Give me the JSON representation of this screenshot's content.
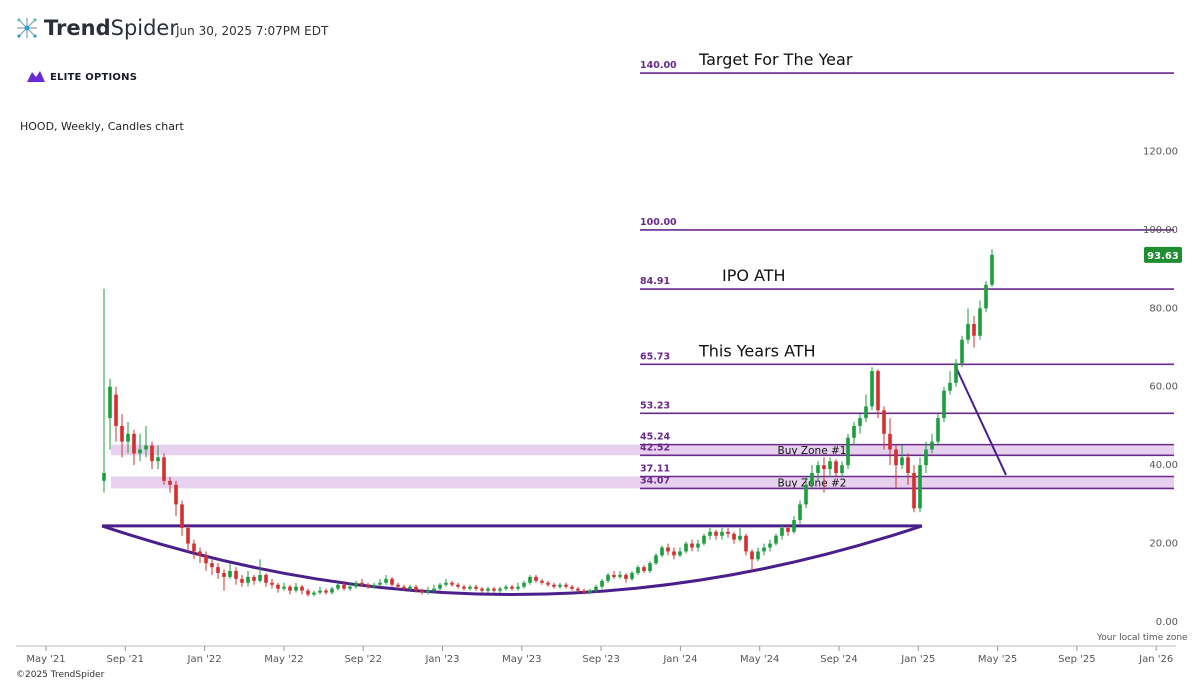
{
  "header": {
    "logo_light": "Trend",
    "logo_bold": "Spider",
    "timestamp": "Jun 30, 2025 7:07PM EDT",
    "brand": "ELITE OPTIONS",
    "chart_title": "HOOD, Weekly, Candles chart"
  },
  "footer": {
    "timezone": "Your local time zone",
    "copyright": "©2025 TrendSpider"
  },
  "chart_data": {
    "type": "candlestick",
    "symbol": "HOOD",
    "interval": "Weekly",
    "title": "HOOD, Weekly, Candles chart",
    "ylim": [
      0,
      145
    ],
    "y_ticks": [
      "0.00",
      "20.00",
      "40.00",
      "60.00",
      "80.00",
      "100.00",
      "120.00"
    ],
    "x_ticks": [
      "May '21",
      "Sep '21",
      "Jan '22",
      "May '22",
      "Sep '22",
      "Jan '23",
      "May '23",
      "Sep '23",
      "Jan '24",
      "May '24",
      "Sep '24",
      "Jan '25",
      "May '25",
      "Sep '25",
      "Jan '26"
    ],
    "last_price": "93.63",
    "colors": {
      "up": "#1b9e3e",
      "down": "#d32f2f",
      "level": "#6a2a8a",
      "zone": "#e4c8ec",
      "pattern": "#4a1f8c"
    },
    "levels": [
      {
        "value": 140.0,
        "label": "140.00",
        "annotation": "Target For The Year"
      },
      {
        "value": 100.0,
        "label": "100.00",
        "annotation": ""
      },
      {
        "value": 84.91,
        "label": "84.91",
        "annotation": "IPO ATH"
      },
      {
        "value": 65.73,
        "label": "65.73",
        "annotation": "This Years ATH"
      },
      {
        "value": 53.23,
        "label": "53.23",
        "annotation": ""
      },
      {
        "value": 45.24,
        "label": "45.24",
        "annotation": ""
      },
      {
        "value": 42.52,
        "label": "42.52",
        "annotation": ""
      },
      {
        "value": 37.11,
        "label": "37.11",
        "annotation": ""
      },
      {
        "value": 34.07,
        "label": "34.07",
        "annotation": ""
      }
    ],
    "zones": [
      {
        "label": "Buy Zone #1",
        "low": 42.52,
        "high": 45.24
      },
      {
        "label": "Buy Zone #2",
        "low": 34.07,
        "high": 37.11
      }
    ],
    "candles": [
      [
        36.0,
        38.0,
        85.0,
        33.0
      ],
      [
        52.0,
        60.0,
        62.0,
        44.0
      ],
      [
        58.0,
        50.0,
        60.0,
        46.0
      ],
      [
        50.0,
        46.0,
        53.0,
        42.0
      ],
      [
        46.0,
        48.0,
        51.0,
        43.0
      ],
      [
        48.0,
        43.0,
        49.0,
        40.0
      ],
      [
        43.0,
        44.0,
        48.0,
        41.0
      ],
      [
        44.0,
        45.0,
        50.0,
        42.0
      ],
      [
        45.0,
        41.0,
        46.0,
        39.0
      ],
      [
        41.0,
        42.0,
        45.0,
        39.0
      ],
      [
        42.0,
        36.0,
        43.0,
        35.0
      ],
      [
        36.0,
        35.0,
        37.0,
        33.0
      ],
      [
        35.0,
        30.0,
        36.0,
        27.0
      ],
      [
        30.0,
        24.0,
        31.0,
        22.0
      ],
      [
        24.0,
        20.0,
        25.0,
        18.0
      ],
      [
        20.0,
        18.0,
        21.0,
        16.0
      ],
      [
        18.0,
        17.0,
        19.0,
        15.0
      ],
      [
        17.0,
        15.0,
        18.0,
        13.0
      ],
      [
        15.0,
        14.0,
        16.0,
        12.0
      ],
      [
        14.0,
        12.5,
        15.0,
        11.0
      ],
      [
        12.5,
        11.5,
        13.5,
        8.0
      ],
      [
        11.5,
        13.0,
        15.0,
        11.0
      ],
      [
        13.0,
        11.0,
        14.0,
        9.5
      ],
      [
        11.0,
        10.0,
        12.0,
        9.0
      ],
      [
        10.0,
        11.5,
        13.0,
        9.0
      ],
      [
        11.5,
        10.5,
        12.0,
        9.5
      ],
      [
        10.5,
        12.0,
        16.0,
        10.0
      ],
      [
        12.0,
        10.0,
        12.5,
        9.0
      ],
      [
        10.0,
        9.5,
        11.0,
        8.5
      ],
      [
        9.5,
        8.5,
        10.0,
        7.5
      ],
      [
        8.5,
        9.0,
        10.0,
        8.0
      ],
      [
        9.0,
        8.0,
        9.5,
        7.0
      ],
      [
        8.0,
        9.0,
        10.0,
        7.5
      ],
      [
        9.0,
        8.0,
        9.5,
        7.0
      ],
      [
        8.0,
        7.0,
        8.5,
        6.5
      ],
      [
        7.0,
        7.5,
        8.0,
        6.5
      ],
      [
        7.5,
        8.0,
        9.0,
        7.0
      ],
      [
        8.0,
        7.5,
        8.5,
        7.0
      ],
      [
        7.5,
        8.5,
        9.0,
        7.0
      ],
      [
        8.5,
        9.5,
        10.0,
        8.0
      ],
      [
        9.5,
        8.5,
        10.5,
        8.0
      ],
      [
        8.5,
        9.0,
        10.0,
        8.0
      ],
      [
        9.0,
        10.0,
        10.5,
        8.5
      ],
      [
        10.0,
        9.5,
        11.0,
        9.0
      ],
      [
        9.5,
        9.0,
        10.0,
        8.5
      ],
      [
        9.0,
        9.5,
        10.0,
        8.5
      ],
      [
        9.5,
        10.0,
        11.0,
        9.0
      ],
      [
        10.0,
        11.0,
        12.0,
        9.5
      ],
      [
        11.0,
        9.5,
        11.5,
        9.0
      ],
      [
        9.5,
        9.0,
        10.0,
        8.5
      ],
      [
        9.0,
        8.5,
        9.5,
        8.0
      ],
      [
        8.5,
        9.0,
        9.5,
        8.0
      ],
      [
        9.0,
        8.0,
        9.5,
        7.5
      ],
      [
        8.0,
        7.5,
        8.5,
        7.0
      ],
      [
        7.5,
        8.0,
        9.0,
        7.0
      ],
      [
        8.0,
        8.5,
        9.5,
        7.5
      ],
      [
        8.5,
        9.5,
        10.0,
        8.0
      ],
      [
        9.5,
        10.0,
        11.0,
        9.0
      ],
      [
        10.0,
        9.5,
        10.5,
        9.0
      ],
      [
        9.5,
        9.0,
        10.0,
        8.5
      ],
      [
        9.0,
        8.5,
        9.5,
        8.0
      ],
      [
        8.5,
        9.0,
        9.5,
        8.0
      ],
      [
        9.0,
        8.5,
        9.5,
        8.0
      ],
      [
        8.5,
        8.0,
        9.0,
        7.5
      ],
      [
        8.0,
        8.5,
        9.0,
        7.5
      ],
      [
        8.5,
        8.0,
        9.0,
        7.5
      ],
      [
        8.0,
        8.5,
        9.0,
        7.5
      ],
      [
        8.5,
        9.0,
        9.5,
        8.0
      ],
      [
        9.0,
        8.5,
        9.5,
        8.0
      ],
      [
        8.5,
        9.0,
        10.0,
        8.0
      ],
      [
        9.0,
        10.0,
        10.5,
        8.5
      ],
      [
        10.0,
        11.5,
        12.0,
        9.5
      ],
      [
        11.5,
        10.5,
        12.0,
        10.0
      ],
      [
        10.5,
        10.0,
        11.0,
        9.5
      ],
      [
        10.0,
        9.5,
        10.5,
        9.0
      ],
      [
        9.5,
        9.0,
        10.0,
        8.5
      ],
      [
        9.0,
        9.5,
        10.0,
        8.5
      ],
      [
        9.5,
        9.0,
        10.0,
        8.5
      ],
      [
        9.0,
        8.5,
        9.5,
        8.0
      ],
      [
        8.5,
        8.0,
        9.0,
        7.5
      ],
      [
        8.0,
        7.5,
        8.5,
        7.0
      ],
      [
        7.5,
        8.0,
        8.5,
        7.0
      ],
      [
        8.0,
        9.0,
        9.5,
        7.5
      ],
      [
        9.0,
        10.5,
        11.0,
        8.5
      ],
      [
        10.5,
        12.0,
        12.5,
        10.0
      ],
      [
        12.0,
        11.5,
        13.0,
        11.0
      ],
      [
        11.5,
        12.0,
        13.0,
        11.0
      ],
      [
        12.0,
        11.0,
        12.5,
        10.0
      ],
      [
        11.0,
        12.5,
        13.0,
        10.5
      ],
      [
        12.5,
        14.0,
        14.5,
        12.0
      ],
      [
        14.0,
        13.0,
        14.5,
        12.5
      ],
      [
        13.0,
        15.0,
        15.5,
        12.5
      ],
      [
        15.0,
        17.0,
        17.5,
        14.5
      ],
      [
        17.0,
        19.0,
        19.5,
        16.5
      ],
      [
        19.0,
        18.0,
        20.0,
        17.0
      ],
      [
        18.0,
        17.0,
        19.0,
        16.0
      ],
      [
        17.0,
        18.0,
        19.0,
        16.5
      ],
      [
        18.0,
        20.0,
        20.5,
        17.5
      ],
      [
        20.0,
        19.0,
        21.0,
        18.0
      ],
      [
        19.0,
        20.0,
        21.0,
        18.0
      ],
      [
        20.0,
        22.0,
        22.5,
        19.5
      ],
      [
        22.0,
        23.0,
        24.0,
        21.0
      ],
      [
        23.0,
        22.0,
        23.5,
        21.0
      ],
      [
        22.0,
        23.0,
        24.0,
        21.0
      ],
      [
        23.0,
        22.5,
        24.0,
        21.5
      ],
      [
        22.5,
        21.0,
        23.0,
        20.0
      ],
      [
        21.0,
        22.0,
        24.0,
        20.5
      ],
      [
        22.0,
        18.0,
        22.5,
        17.0
      ],
      [
        18.0,
        16.0,
        18.5,
        13.0
      ],
      [
        16.0,
        18.0,
        19.0,
        15.5
      ],
      [
        18.0,
        19.0,
        20.0,
        17.0
      ],
      [
        19.0,
        20.0,
        21.0,
        18.0
      ],
      [
        20.0,
        22.0,
        22.5,
        19.5
      ],
      [
        22.0,
        24.0,
        25.0,
        21.0
      ],
      [
        24.0,
        23.0,
        25.0,
        22.0
      ],
      [
        23.0,
        26.0,
        27.0,
        22.5
      ],
      [
        26.0,
        30.0,
        31.0,
        25.0
      ],
      [
        30.0,
        35.0,
        37.0,
        29.0
      ],
      [
        35.0,
        38.0,
        40.0,
        34.0
      ],
      [
        38.0,
        40.0,
        41.0,
        36.0
      ],
      [
        40.0,
        39.0,
        42.0,
        33.0
      ],
      [
        39.0,
        41.0,
        42.0,
        37.0
      ],
      [
        41.0,
        38.0,
        41.5,
        37.0
      ],
      [
        38.0,
        40.0,
        41.0,
        37.0
      ],
      [
        40.0,
        47.0,
        48.0,
        39.0
      ],
      [
        47.0,
        50.0,
        51.0,
        45.0
      ],
      [
        50.0,
        52.0,
        53.0,
        48.0
      ],
      [
        52.0,
        55.0,
        58.0,
        51.0
      ],
      [
        55.0,
        64.0,
        65.0,
        54.0
      ],
      [
        64.0,
        54.0,
        64.5,
        52.0
      ],
      [
        54.0,
        48.0,
        55.0,
        44.0
      ],
      [
        48.0,
        44.0,
        52.0,
        40.0
      ],
      [
        44.0,
        40.0,
        45.0,
        34.0
      ],
      [
        40.0,
        42.0,
        45.0,
        39.0
      ],
      [
        42.0,
        38.0,
        43.0,
        35.0
      ],
      [
        38.0,
        29.0,
        40.0,
        28.0
      ],
      [
        29.0,
        40.0,
        42.0,
        28.0
      ],
      [
        40.0,
        44.0,
        46.0,
        38.0
      ],
      [
        44.0,
        46.0,
        48.0,
        43.0
      ],
      [
        46.0,
        52.0,
        53.0,
        45.0
      ],
      [
        52.0,
        59.0,
        60.0,
        51.0
      ],
      [
        59.0,
        61.0,
        64.0,
        58.0
      ],
      [
        61.0,
        66.0,
        67.0,
        60.0
      ],
      [
        66.0,
        72.0,
        73.0,
        65.0
      ],
      [
        72.0,
        76.0,
        80.0,
        71.0
      ],
      [
        76.0,
        73.0,
        78.0,
        70.0
      ],
      [
        73.0,
        80.0,
        82.0,
        72.0
      ],
      [
        80.0,
        86.0,
        87.0,
        79.0
      ],
      [
        86.0,
        93.63,
        95.0,
        85.5
      ]
    ],
    "pattern": {
      "cup_bottom": 7.0,
      "lip_level": 24.5,
      "handle_trendline": [
        [
          65.5,
          33.0
        ],
        [
          38.5,
          37.5
        ]
      ]
    }
  }
}
